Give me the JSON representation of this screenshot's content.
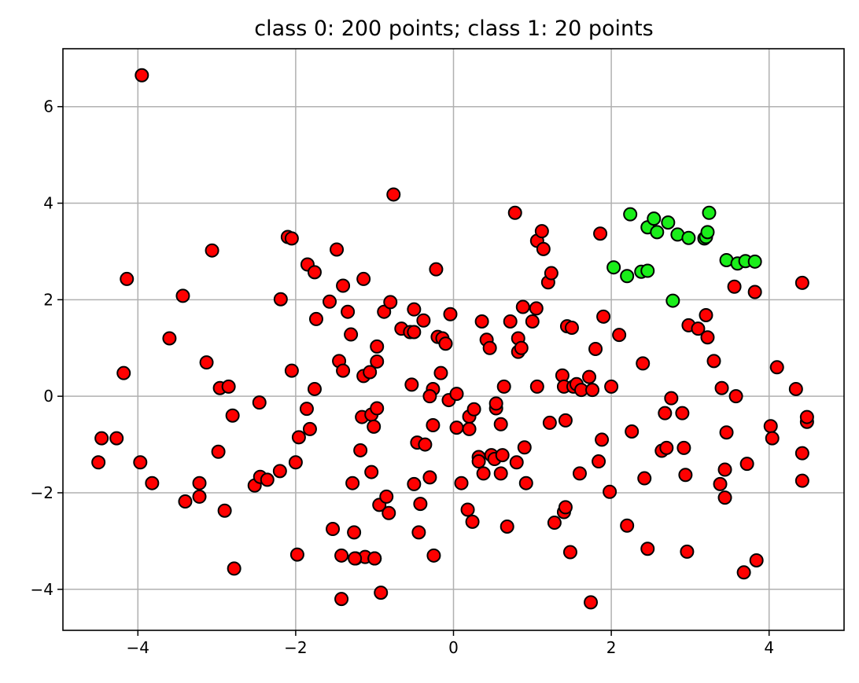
{
  "chart_data": {
    "type": "scatter",
    "title": "class 0: 200 points; class 1: 20 points",
    "xlabel": "",
    "ylabel": "",
    "xlim": [
      -4.95,
      4.95
    ],
    "ylim": [
      -4.85,
      7.2
    ],
    "xticks": [
      -4,
      -2,
      0,
      2,
      4
    ],
    "yticks": [
      -4,
      -2,
      0,
      2,
      4,
      6
    ],
    "xtick_labels": [
      "−4",
      "−2",
      "0",
      "2",
      "4"
    ],
    "ytick_labels": [
      "−4",
      "−2",
      "0",
      "2",
      "4",
      "6"
    ],
    "grid": true,
    "legend": "none",
    "series": [
      {
        "color": "#ff0000",
        "points": [
          [
            -3.95,
            6.65
          ],
          [
            -4.14,
            2.43
          ],
          [
            -4.18,
            0.48
          ],
          [
            -4.27,
            -0.87
          ],
          [
            -4.46,
            -0.87
          ],
          [
            -4.5,
            -1.37
          ],
          [
            -3.97,
            -1.37
          ],
          [
            -3.82,
            -1.8
          ],
          [
            -3.6,
            1.2
          ],
          [
            -3.43,
            2.08
          ],
          [
            -3.4,
            -2.18
          ],
          [
            -3.22,
            -1.8
          ],
          [
            -3.22,
            -2.08
          ],
          [
            -3.13,
            0.7
          ],
          [
            -3.06,
            3.02
          ],
          [
            -2.98,
            -1.15
          ],
          [
            -2.96,
            0.17
          ],
          [
            -2.9,
            -2.37
          ],
          [
            -2.85,
            0.2
          ],
          [
            -2.8,
            -0.4
          ],
          [
            -2.78,
            -3.57
          ],
          [
            -2.52,
            -1.85
          ],
          [
            -2.46,
            -0.13
          ],
          [
            -2.45,
            -1.67
          ],
          [
            -2.36,
            -1.73
          ],
          [
            -2.2,
            -1.55
          ],
          [
            -2.19,
            2.01
          ],
          [
            -2.1,
            3.3
          ],
          [
            -2.05,
            3.27
          ],
          [
            -2.05,
            0.53
          ],
          [
            -2.0,
            -1.37
          ],
          [
            -1.96,
            -0.85
          ],
          [
            -1.98,
            -3.28
          ],
          [
            -1.85,
            2.73
          ],
          [
            -1.86,
            -0.26
          ],
          [
            -1.82,
            -0.68
          ],
          [
            -1.76,
            2.57
          ],
          [
            -1.74,
            1.6
          ],
          [
            -1.76,
            0.15
          ],
          [
            -1.57,
            1.96
          ],
          [
            -1.53,
            -2.75
          ],
          [
            -1.48,
            3.04
          ],
          [
            -1.45,
            0.73
          ],
          [
            -1.4,
            0.53
          ],
          [
            -1.4,
            2.29
          ],
          [
            -1.42,
            -3.3
          ],
          [
            -1.42,
            -4.2
          ],
          [
            -1.34,
            1.75
          ],
          [
            -1.3,
            1.28
          ],
          [
            -1.28,
            -1.8
          ],
          [
            -1.26,
            -2.82
          ],
          [
            -1.24,
            -3.36
          ],
          [
            -1.18,
            -1.12
          ],
          [
            -1.16,
            -0.43
          ],
          [
            -1.14,
            2.43
          ],
          [
            -1.14,
            0.42
          ],
          [
            -1.12,
            -3.33
          ],
          [
            -1.06,
            0.5
          ],
          [
            -1.04,
            -0.38
          ],
          [
            -1.04,
            -1.57
          ],
          [
            -1.01,
            -0.63
          ],
          [
            -1.0,
            -3.36
          ],
          [
            -0.97,
            1.03
          ],
          [
            -0.97,
            0.72
          ],
          [
            -0.97,
            -0.25
          ],
          [
            -0.94,
            -2.25
          ],
          [
            -0.92,
            -4.07
          ],
          [
            -0.88,
            1.75
          ],
          [
            -0.85,
            -2.08
          ],
          [
            -0.82,
            -2.42
          ],
          [
            -0.8,
            1.95
          ],
          [
            -0.76,
            4.18
          ],
          [
            -0.66,
            1.4
          ],
          [
            -0.55,
            1.33
          ],
          [
            -0.53,
            0.24
          ],
          [
            -0.5,
            1.8
          ],
          [
            -0.5,
            1.33
          ],
          [
            -0.5,
            -1.82
          ],
          [
            -0.46,
            -0.96
          ],
          [
            -0.44,
            -2.82
          ],
          [
            -0.42,
            -2.23
          ],
          [
            -0.38,
            1.57
          ],
          [
            -0.36,
            -1.0
          ],
          [
            -0.3,
            -1.68
          ],
          [
            -0.26,
            -0.6
          ],
          [
            -0.22,
            2.63
          ],
          [
            -0.25,
            -3.3
          ],
          [
            -0.2,
            1.23
          ],
          [
            -0.14,
            1.2
          ],
          [
            -0.16,
            0.48
          ],
          [
            -0.1,
            1.09
          ],
          [
            -0.06,
            -0.08
          ],
          [
            -0.04,
            1.7
          ],
          [
            -0.26,
            0.15
          ],
          [
            -0.3,
            0.0
          ],
          [
            0.04,
            0.05
          ],
          [
            0.04,
            -0.65
          ],
          [
            0.1,
            -1.8
          ],
          [
            0.18,
            -2.35
          ],
          [
            0.2,
            -0.42
          ],
          [
            0.2,
            -0.68
          ],
          [
            0.24,
            -2.6
          ],
          [
            0.26,
            -0.27
          ],
          [
            0.32,
            -1.26
          ],
          [
            0.32,
            -1.35
          ],
          [
            0.36,
            1.55
          ],
          [
            0.38,
            -1.6
          ],
          [
            0.42,
            1.17
          ],
          [
            0.46,
            1.0
          ],
          [
            0.48,
            -1.22
          ],
          [
            0.52,
            -1.3
          ],
          [
            0.54,
            -0.25
          ],
          [
            0.54,
            -0.15
          ],
          [
            0.6,
            -1.6
          ],
          [
            0.6,
            -0.58
          ],
          [
            0.62,
            -1.22
          ],
          [
            0.64,
            0.2
          ],
          [
            0.68,
            -2.7
          ],
          [
            0.72,
            1.55
          ],
          [
            0.78,
            3.8
          ],
          [
            0.8,
            -1.37
          ],
          [
            0.82,
            1.2
          ],
          [
            0.82,
            0.92
          ],
          [
            0.86,
            1.0
          ],
          [
            0.88,
            1.85
          ],
          [
            0.9,
            -1.06
          ],
          [
            0.92,
            -1.8
          ],
          [
            1.0,
            1.55
          ],
          [
            1.05,
            1.82
          ],
          [
            1.06,
            0.2
          ],
          [
            1.06,
            3.22
          ],
          [
            1.12,
            3.42
          ],
          [
            1.14,
            3.05
          ],
          [
            1.2,
            2.36
          ],
          [
            1.22,
            -0.55
          ],
          [
            1.24,
            2.55
          ],
          [
            1.28,
            -2.62
          ],
          [
            1.38,
            0.43
          ],
          [
            1.4,
            0.2
          ],
          [
            1.4,
            -2.4
          ],
          [
            1.42,
            -2.3
          ],
          [
            1.42,
            -0.5
          ],
          [
            1.44,
            1.45
          ],
          [
            1.48,
            -3.23
          ],
          [
            1.5,
            1.42
          ],
          [
            1.52,
            0.2
          ],
          [
            1.56,
            0.25
          ],
          [
            1.6,
            -1.6
          ],
          [
            1.62,
            0.13
          ],
          [
            1.72,
            0.4
          ],
          [
            1.74,
            -4.27
          ],
          [
            1.76,
            0.13
          ],
          [
            1.8,
            0.98
          ],
          [
            1.84,
            -1.35
          ],
          [
            1.86,
            3.37
          ],
          [
            1.88,
            -0.9
          ],
          [
            1.9,
            1.65
          ],
          [
            1.98,
            -1.98
          ],
          [
            2.0,
            0.2
          ],
          [
            2.1,
            1.27
          ],
          [
            2.2,
            -2.68
          ],
          [
            2.26,
            -0.73
          ],
          [
            2.4,
            0.68
          ],
          [
            2.42,
            -1.7
          ],
          [
            2.46,
            -3.16
          ],
          [
            2.64,
            -1.13
          ],
          [
            2.68,
            -0.35
          ],
          [
            2.7,
            -1.07
          ],
          [
            2.76,
            -0.04
          ],
          [
            2.9,
            -0.35
          ],
          [
            2.92,
            -1.07
          ],
          [
            2.94,
            -1.63
          ],
          [
            2.96,
            -3.22
          ],
          [
            2.98,
            1.47
          ],
          [
            3.1,
            1.4
          ],
          [
            3.2,
            1.68
          ],
          [
            3.22,
            1.22
          ],
          [
            3.3,
            0.73
          ],
          [
            3.38,
            -1.82
          ],
          [
            3.4,
            0.17
          ],
          [
            3.44,
            -2.1
          ],
          [
            3.44,
            -1.52
          ],
          [
            3.46,
            -0.75
          ],
          [
            3.58,
            0.0
          ],
          [
            3.56,
            2.27
          ],
          [
            3.68,
            -3.65
          ],
          [
            3.72,
            -1.4
          ],
          [
            3.82,
            2.16
          ],
          [
            3.84,
            -3.4
          ],
          [
            4.02,
            -0.62
          ],
          [
            4.04,
            -0.87
          ],
          [
            4.1,
            0.6
          ],
          [
            4.34,
            0.15
          ],
          [
            4.42,
            -1.18
          ],
          [
            4.48,
            -0.53
          ],
          [
            4.42,
            2.35
          ],
          [
            4.42,
            -1.75
          ],
          [
            4.48,
            -0.43
          ],
          [
            -1.0,
            -3.36
          ],
          [
            -1.25,
            -3.36
          ]
        ]
      },
      {
        "color": "#1aee1a",
        "points": [
          [
            2.03,
            2.67
          ],
          [
            2.2,
            2.49
          ],
          [
            2.24,
            3.77
          ],
          [
            2.38,
            2.58
          ],
          [
            2.46,
            3.5
          ],
          [
            2.46,
            2.6
          ],
          [
            2.54,
            3.68
          ],
          [
            2.58,
            3.4
          ],
          [
            2.72,
            3.6
          ],
          [
            2.78,
            1.98
          ],
          [
            2.84,
            3.35
          ],
          [
            2.98,
            3.28
          ],
          [
            3.18,
            3.27
          ],
          [
            3.2,
            3.3
          ],
          [
            3.22,
            3.4
          ],
          [
            3.24,
            3.8
          ],
          [
            3.46,
            2.82
          ],
          [
            3.6,
            2.75
          ],
          [
            3.7,
            2.8
          ],
          [
            3.82,
            2.79
          ]
        ]
      }
    ]
  }
}
